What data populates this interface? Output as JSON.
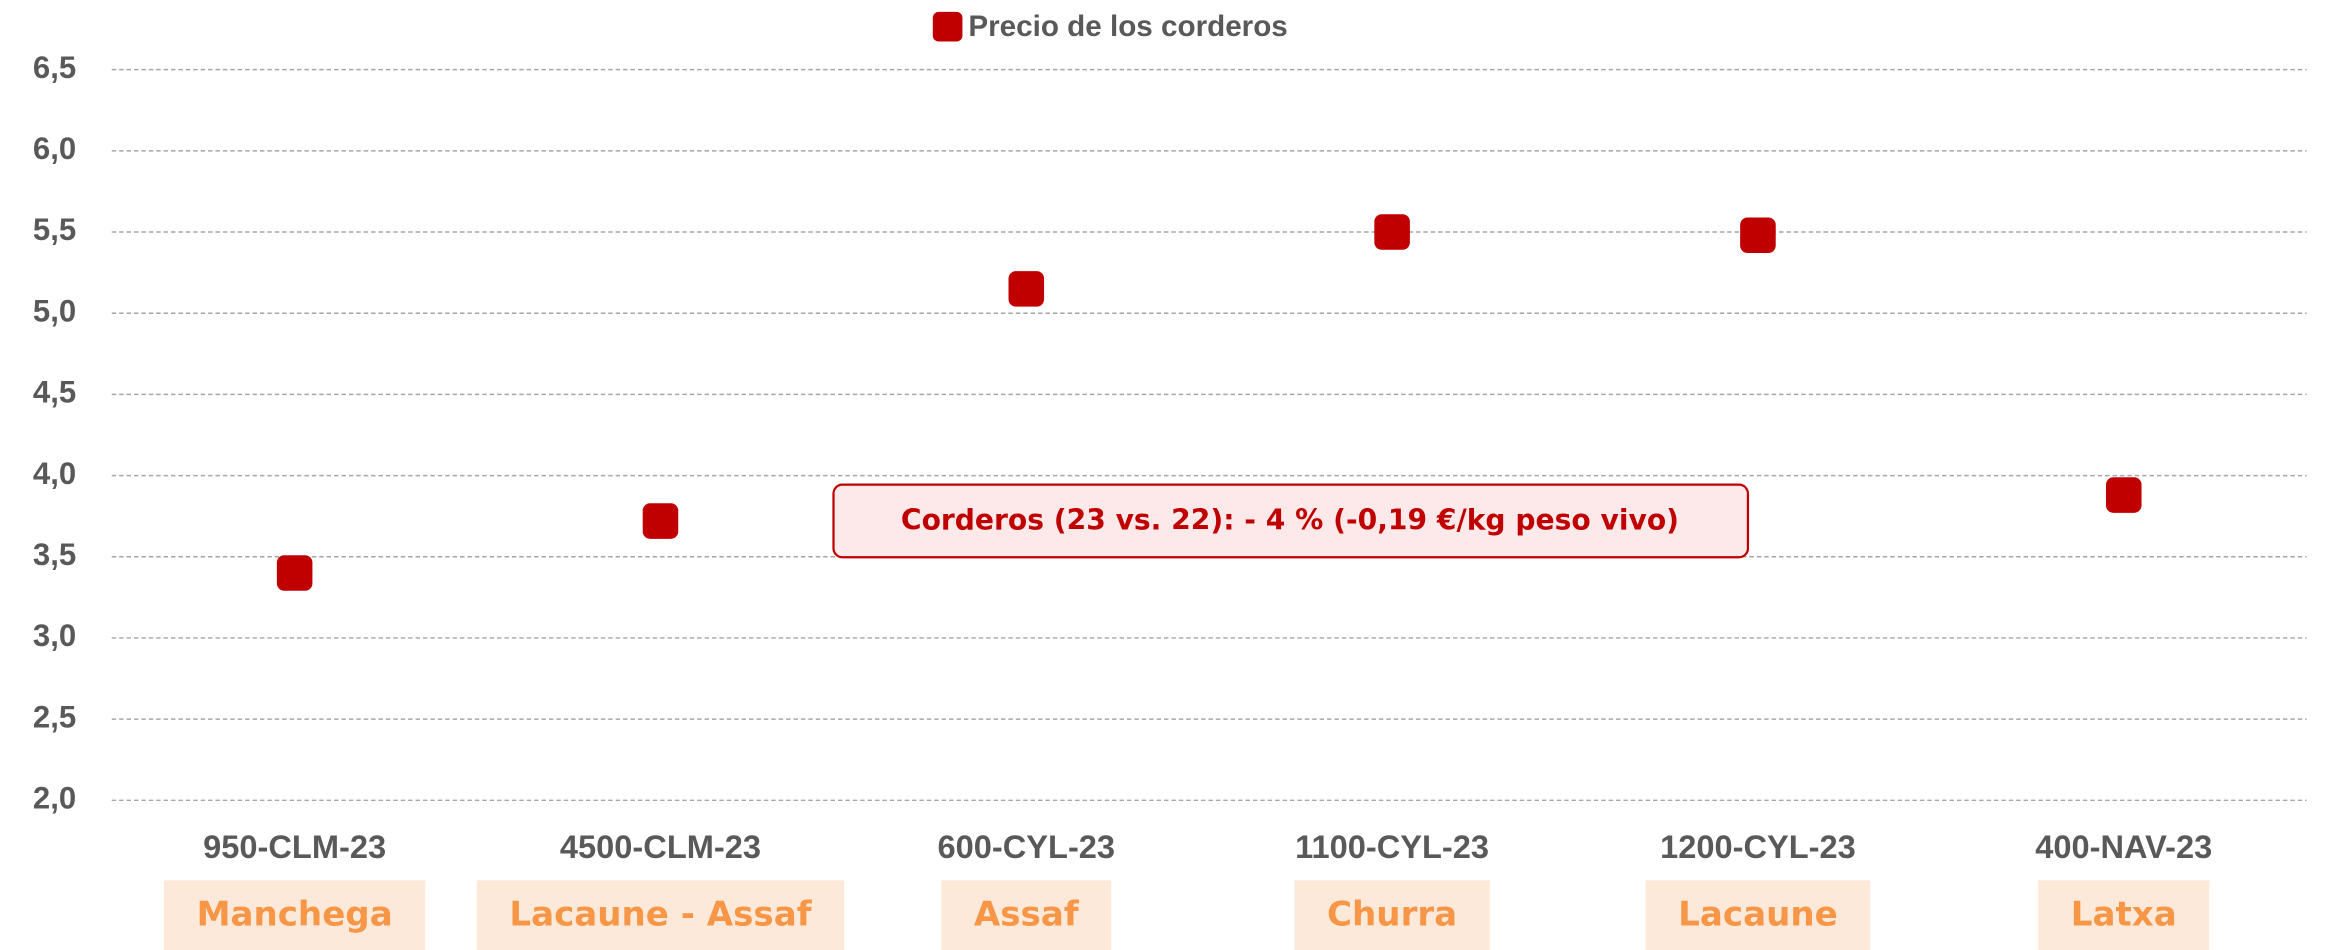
{
  "chart_data": {
    "type": "scatter",
    "legend": "Precio de los corderos",
    "series": [
      {
        "name": "Precio de los corderos",
        "color": "#c00000",
        "values": [
          3.4,
          3.72,
          5.15,
          5.5,
          5.48,
          3.88
        ]
      }
    ],
    "categories": [
      "950-CLM-23",
      "4500-CLM-23",
      "600-CYL-23",
      "1100-CYL-23",
      "1200-CYL-23",
      "400-NAV-23"
    ],
    "breeds": [
      "Manchega",
      "Lacaune - Assaf",
      "Assaf",
      "Churra",
      "Lacaune",
      "Latxa"
    ],
    "annotation": "Corderos (23 vs. 22): - 4 %  (-0,19 €/kg peso vivo)",
    "ylim": [
      2.0,
      6.5
    ],
    "yticks": [
      {
        "value": 2.0,
        "label": "2,0"
      },
      {
        "value": 2.5,
        "label": "2,5"
      },
      {
        "value": 3.0,
        "label": "3,0"
      },
      {
        "value": 3.5,
        "label": "3,5"
      },
      {
        "value": 4.0,
        "label": "4,0"
      },
      {
        "value": 4.5,
        "label": "4,5"
      },
      {
        "value": 5.0,
        "label": "5,0"
      },
      {
        "value": 5.5,
        "label": "5,5"
      },
      {
        "value": 6.0,
        "label": "6,0"
      },
      {
        "value": 6.5,
        "label": "6,5"
      }
    ],
    "grid": true
  }
}
